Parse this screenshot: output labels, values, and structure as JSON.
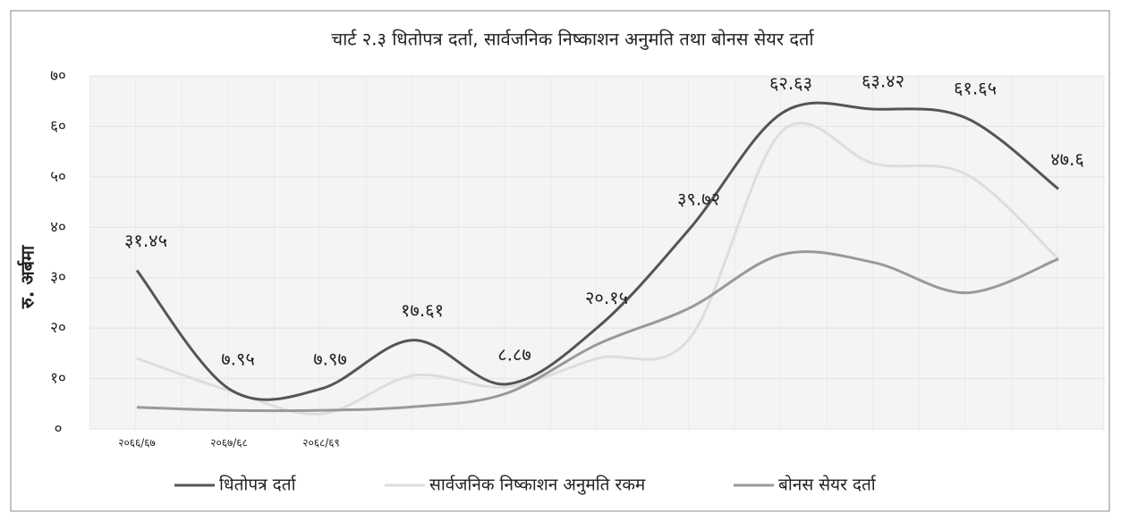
{
  "chart_data": {
    "type": "line",
    "title": "चार्ट २.३ धितोपत्र दर्ता, सार्वजनिक निष्काशन अनुमति तथा बोनस सेयर दर्ता",
    "ylabel": "रु. अर्बमा",
    "categories": [
      "२०६६/६७",
      "२०६७/६८",
      "२०६८/६९",
      null,
      null,
      null,
      null,
      null,
      null,
      null,
      null
    ],
    "series": [
      {
        "name": "धितोपत्र दर्ता",
        "color": "#555555",
        "values": [
          31.45,
          7.95,
          7.97,
          17.61,
          8.87,
          20.15,
          39.72,
          62.63,
          63.42,
          61.65,
          47.6
        ],
        "value_labels": [
          "३१.४५",
          "७.९५",
          "७.९७",
          "१७.६१",
          "८.८७",
          "२०.१५",
          "३९.७२",
          "६२.६३",
          "६३.४२",
          "६१.६५",
          "४७.६"
        ]
      },
      {
        "name": "सार्वजनिक निष्काशन अनुमति रकम",
        "color": "#dddddd",
        "values": [
          14,
          7.6,
          3,
          10.6,
          8.3,
          14,
          18,
          59,
          52.6,
          50.5,
          33.7
        ]
      },
      {
        "name": "बोनस सेयर दर्ता",
        "color": "#999999",
        "values": [
          4.3,
          3.7,
          3.7,
          4.4,
          7,
          16.8,
          24,
          34.6,
          33,
          27,
          33.7
        ]
      }
    ],
    "ylim": [
      0,
      70
    ],
    "yticks": [
      {
        "value": 0,
        "label": "०"
      },
      {
        "value": 10,
        "label": "१०"
      },
      {
        "value": 20,
        "label": "२०"
      },
      {
        "value": 30,
        "label": "३०"
      },
      {
        "value": 40,
        "label": "४०"
      },
      {
        "value": 50,
        "label": "५०"
      },
      {
        "value": 60,
        "label": "६०"
      },
      {
        "value": 70,
        "label": "७०"
      }
    ],
    "grid": true,
    "legend": "bottom"
  }
}
